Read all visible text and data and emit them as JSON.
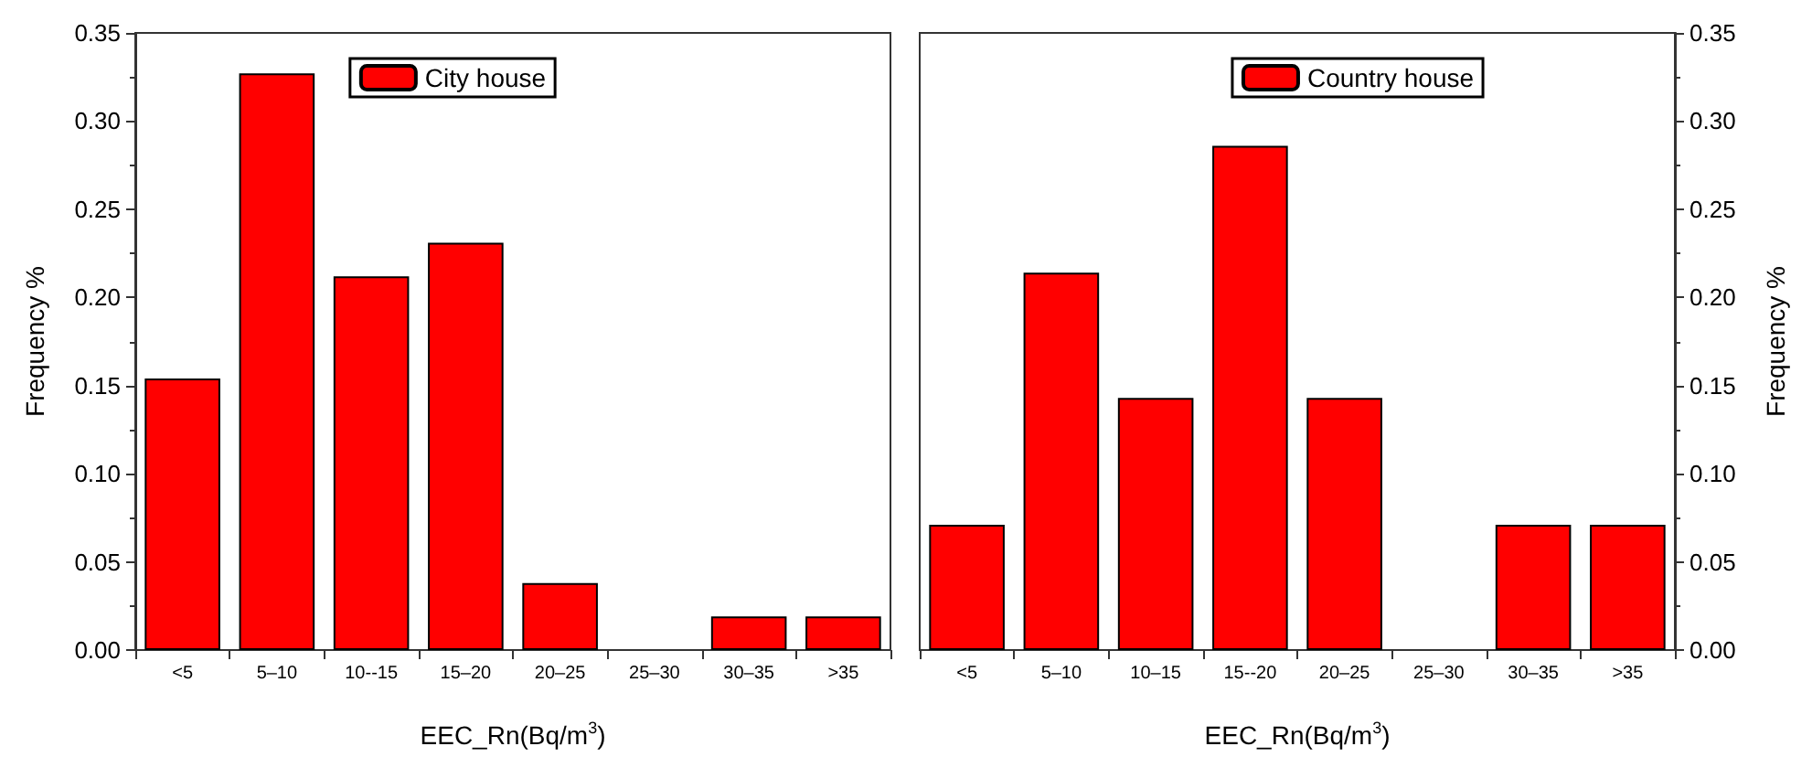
{
  "chart_data": [
    {
      "type": "bar",
      "xlabel": "EEC_Rn(Bq/m$^{3}$)",
      "ylabel": "Frequency %",
      "categories": [
        "<5",
        "5–10",
        "10--15",
        "15–20",
        "20–25",
        "25–30",
        "30–35",
        ">35"
      ],
      "series": [
        {
          "name": "City house",
          "color": "#ff0000",
          "values": [
            0.154,
            0.327,
            0.212,
            0.231,
            0.038,
            0,
            0.019,
            0.019
          ]
        }
      ],
      "ylim": [
        0,
        0.35
      ],
      "yticks": [
        {
          "value": 0,
          "label": "0.00"
        },
        {
          "value": 0.05,
          "label": "0.05"
        },
        {
          "value": 0.1,
          "label": "0.10"
        },
        {
          "value": 0.15,
          "label": "0.15"
        },
        {
          "value": 0.2,
          "label": "0.20"
        },
        {
          "value": 0.25,
          "label": "0.25"
        },
        {
          "value": 0.3,
          "label": "0.30"
        },
        {
          "value": 0.35,
          "label": "0.35"
        }
      ],
      "legend": "top",
      "grid": false
    },
    {
      "type": "bar",
      "xlabel": "EEC_Rn(Bq/m$^{3}$)",
      "y2label": "Frequency %",
      "categories": [
        "<5",
        "5–10",
        "10–15",
        "15--20",
        "20–25",
        "25–30",
        "30–35",
        ">35"
      ],
      "series": [
        {
          "name": "Country house",
          "color": "#ff0000",
          "axis": "y2",
          "values": [
            0.071,
            0.214,
            0.143,
            0.286,
            0.143,
            0,
            0.071,
            0.071
          ]
        }
      ],
      "y2lim": [
        0,
        0.35
      ],
      "y2ticks": [
        {
          "value": 0,
          "label": "0.00"
        },
        {
          "value": 0.05,
          "label": "0.05"
        },
        {
          "value": 0.1,
          "label": "0.10"
        },
        {
          "value": 0.15,
          "label": "0.15"
        },
        {
          "value": 0.2,
          "label": "0.20"
        },
        {
          "value": 0.25,
          "label": "0.25"
        },
        {
          "value": 0.3,
          "label": "0.30"
        },
        {
          "value": 0.35,
          "label": "0.35"
        }
      ],
      "legend": "top",
      "grid": false
    }
  ]
}
